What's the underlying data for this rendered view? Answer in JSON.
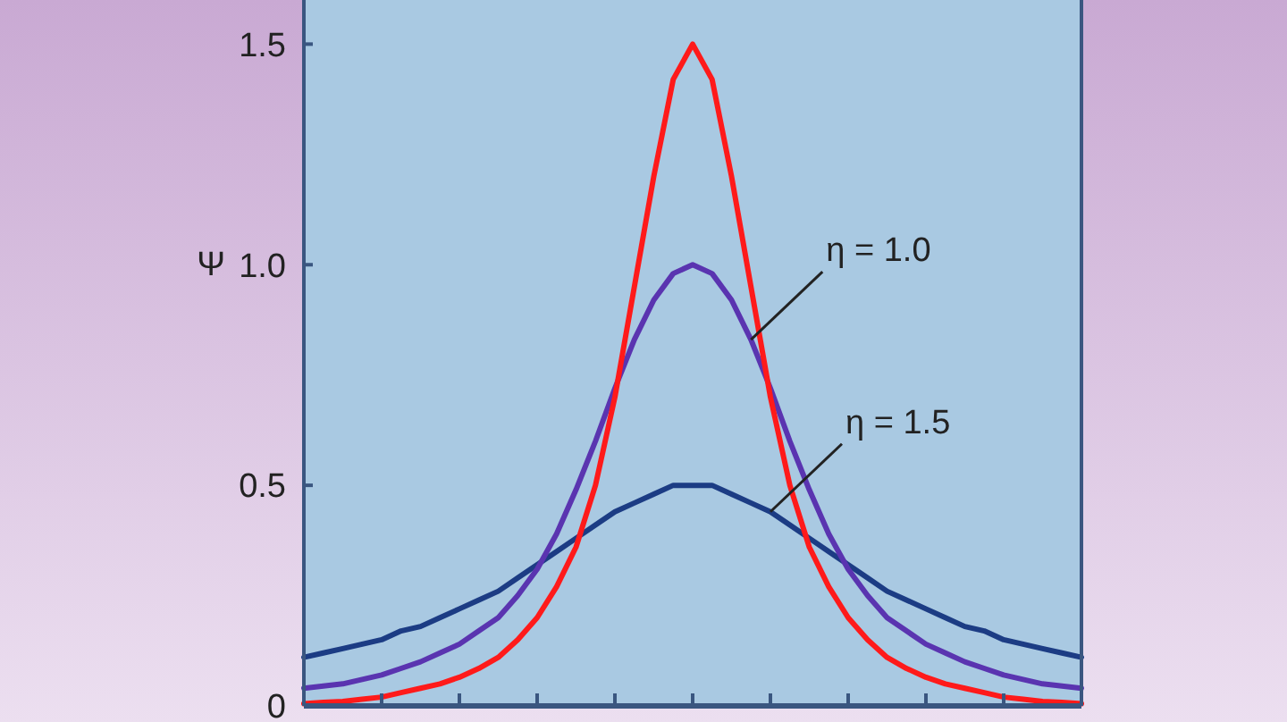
{
  "chart_data": {
    "type": "line",
    "ylabel": "Ψ",
    "categories": [
      null,
      null,
      null,
      null,
      null,
      null,
      null,
      null,
      null,
      null,
      null,
      null,
      null,
      null,
      null,
      null,
      null,
      null,
      null,
      null,
      null,
      null,
      null,
      null,
      null,
      null,
      null,
      null,
      null,
      null,
      null,
      null,
      null,
      null,
      null,
      null,
      null,
      null,
      null,
      null,
      null
    ],
    "series": [
      {
        "name": "η = 1.5",
        "color": "#1c3c84",
        "values": [
          0.11,
          0.12,
          0.13,
          0.14,
          0.15,
          0.17,
          0.18,
          0.2,
          0.22,
          0.24,
          0.26,
          0.29,
          0.32,
          0.35,
          0.38,
          0.41,
          0.44,
          0.46,
          0.48,
          0.5,
          0.5,
          0.5,
          0.48,
          0.46,
          0.44,
          0.41,
          0.38,
          0.35,
          0.32,
          0.29,
          0.26,
          0.24,
          0.22,
          0.2,
          0.18,
          0.17,
          0.15,
          0.14,
          0.13,
          0.12,
          0.11
        ]
      },
      {
        "name": "η = 1.0",
        "color": "#5a34b0",
        "values": [
          0.04,
          0.045,
          0.05,
          0.06,
          0.07,
          0.085,
          0.1,
          0.12,
          0.14,
          0.17,
          0.2,
          0.25,
          0.31,
          0.39,
          0.49,
          0.6,
          0.72,
          0.83,
          0.92,
          0.98,
          1.0,
          0.98,
          0.92,
          0.83,
          0.72,
          0.6,
          0.49,
          0.39,
          0.31,
          0.25,
          0.2,
          0.17,
          0.14,
          0.12,
          0.1,
          0.085,
          0.07,
          0.06,
          0.05,
          0.045,
          0.04
        ]
      },
      {
        "color": "#ff1a1a",
        "values": [
          0.005,
          0.008,
          0.01,
          0.015,
          0.02,
          0.03,
          0.04,
          0.05,
          0.065,
          0.085,
          0.11,
          0.15,
          0.2,
          0.27,
          0.36,
          0.5,
          0.7,
          0.95,
          1.2,
          1.42,
          1.5,
          1.42,
          1.2,
          0.95,
          0.7,
          0.5,
          0.36,
          0.27,
          0.2,
          0.15,
          0.11,
          0.085,
          0.065,
          0.05,
          0.04,
          0.03,
          0.02,
          0.015,
          0.01,
          0.008,
          0.005
        ]
      }
    ],
    "ylim": [
      0,
      1.6
    ],
    "yticks": [
      0,
      0.5,
      {
        "value": 1,
        "label": "1.0"
      },
      1.5
    ],
    "tick_labels": "y"
  }
}
